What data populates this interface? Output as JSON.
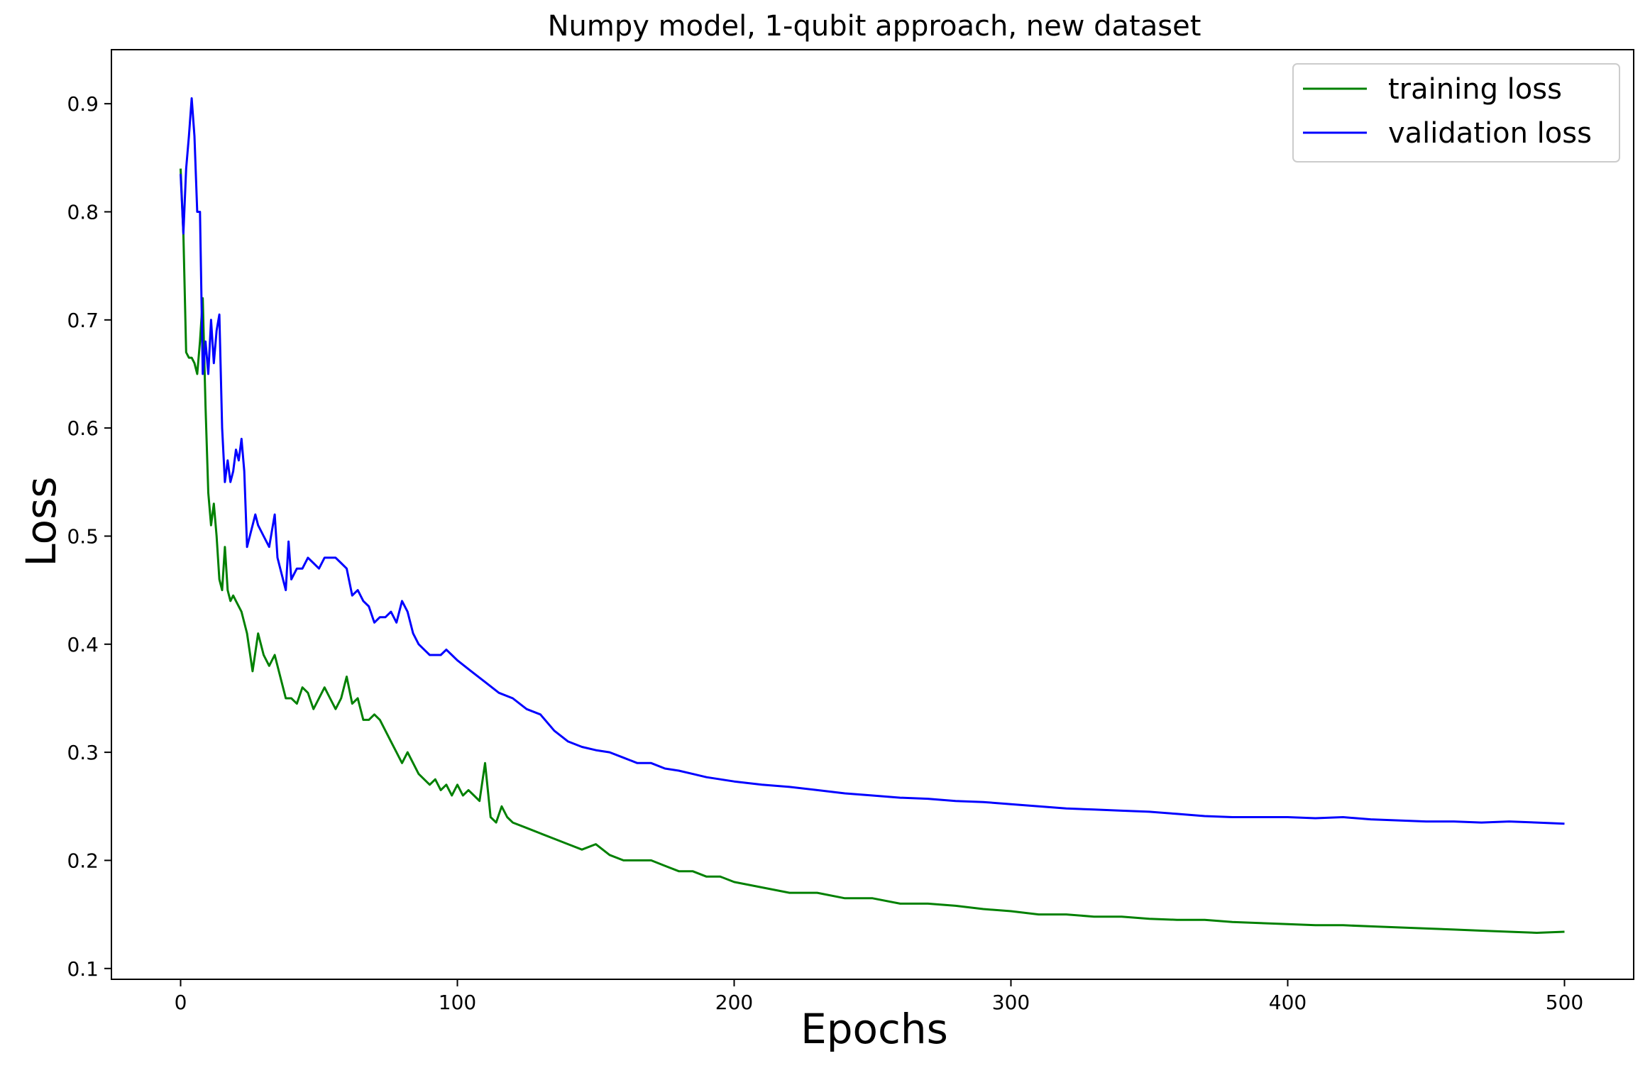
{
  "chart_data": {
    "type": "line",
    "title": "Numpy model, 1-qubit approach, new dataset",
    "xlabel": "Epochs",
    "ylabel": "Loss",
    "xlim": [
      -25,
      525
    ],
    "ylim": [
      0.09,
      0.95
    ],
    "xticks": [
      0,
      100,
      200,
      300,
      400,
      500
    ],
    "yticks": [
      0.1,
      0.2,
      0.3,
      0.4,
      0.5,
      0.6,
      0.7,
      0.8,
      0.9
    ],
    "grid": false,
    "legend_position": "top-right",
    "series": [
      {
        "name": "training loss",
        "color": "#008000",
        "x": [
          0,
          1,
          2,
          3,
          4,
          5,
          6,
          7,
          8,
          9,
          10,
          11,
          12,
          13,
          14,
          15,
          16,
          17,
          18,
          19,
          20,
          22,
          24,
          26,
          28,
          30,
          32,
          34,
          36,
          38,
          40,
          42,
          44,
          46,
          48,
          50,
          52,
          54,
          56,
          58,
          60,
          62,
          64,
          66,
          68,
          70,
          72,
          74,
          76,
          78,
          80,
          82,
          84,
          86,
          88,
          90,
          92,
          94,
          96,
          98,
          100,
          102,
          104,
          106,
          108,
          110,
          112,
          114,
          116,
          118,
          120,
          125,
          130,
          135,
          140,
          145,
          150,
          155,
          160,
          165,
          170,
          175,
          180,
          185,
          190,
          195,
          200,
          210,
          220,
          230,
          240,
          250,
          260,
          270,
          280,
          290,
          300,
          310,
          320,
          330,
          340,
          350,
          360,
          370,
          380,
          390,
          400,
          410,
          420,
          430,
          440,
          450,
          460,
          470,
          480,
          490,
          500
        ],
        "values": [
          0.84,
          0.78,
          0.67,
          0.665,
          0.665,
          0.66,
          0.65,
          0.68,
          0.72,
          0.62,
          0.54,
          0.51,
          0.53,
          0.5,
          0.46,
          0.45,
          0.49,
          0.45,
          0.44,
          0.445,
          0.44,
          0.43,
          0.41,
          0.375,
          0.41,
          0.39,
          0.38,
          0.39,
          0.37,
          0.35,
          0.35,
          0.345,
          0.36,
          0.355,
          0.34,
          0.35,
          0.36,
          0.35,
          0.34,
          0.35,
          0.37,
          0.345,
          0.35,
          0.33,
          0.33,
          0.335,
          0.33,
          0.32,
          0.31,
          0.3,
          0.29,
          0.3,
          0.29,
          0.28,
          0.275,
          0.27,
          0.275,
          0.265,
          0.27,
          0.26,
          0.27,
          0.26,
          0.265,
          0.26,
          0.255,
          0.29,
          0.24,
          0.235,
          0.25,
          0.24,
          0.235,
          0.23,
          0.225,
          0.22,
          0.215,
          0.21,
          0.215,
          0.205,
          0.2,
          0.2,
          0.2,
          0.195,
          0.19,
          0.19,
          0.185,
          0.185,
          0.18,
          0.175,
          0.17,
          0.17,
          0.165,
          0.165,
          0.16,
          0.16,
          0.158,
          0.155,
          0.153,
          0.15,
          0.15,
          0.148,
          0.148,
          0.146,
          0.145,
          0.145,
          0.143,
          0.142,
          0.141,
          0.14,
          0.14,
          0.139,
          0.138,
          0.137,
          0.136,
          0.135,
          0.134,
          0.133,
          0.134
        ]
      },
      {
        "name": "validation loss",
        "color": "#0000ff",
        "x": [
          0,
          1,
          2,
          3,
          4,
          5,
          6,
          7,
          8,
          9,
          10,
          11,
          12,
          13,
          14,
          15,
          16,
          17,
          18,
          19,
          20,
          21,
          22,
          23,
          24,
          25,
          26,
          27,
          28,
          30,
          32,
          34,
          35,
          36,
          38,
          39,
          40,
          42,
          44,
          46,
          48,
          50,
          52,
          54,
          56,
          58,
          60,
          62,
          64,
          66,
          68,
          70,
          72,
          74,
          76,
          78,
          80,
          82,
          84,
          86,
          88,
          90,
          92,
          94,
          96,
          98,
          100,
          105,
          110,
          115,
          120,
          125,
          130,
          135,
          140,
          145,
          150,
          155,
          160,
          165,
          170,
          175,
          180,
          185,
          190,
          195,
          200,
          210,
          220,
          230,
          240,
          250,
          260,
          270,
          280,
          290,
          300,
          310,
          320,
          330,
          340,
          350,
          360,
          370,
          380,
          390,
          400,
          410,
          420,
          430,
          440,
          450,
          460,
          470,
          480,
          490,
          500
        ],
        "values": [
          0.835,
          0.78,
          0.84,
          0.87,
          0.905,
          0.87,
          0.8,
          0.8,
          0.65,
          0.68,
          0.65,
          0.7,
          0.66,
          0.69,
          0.705,
          0.6,
          0.55,
          0.57,
          0.55,
          0.56,
          0.58,
          0.57,
          0.59,
          0.56,
          0.49,
          0.5,
          0.51,
          0.52,
          0.51,
          0.5,
          0.49,
          0.52,
          0.48,
          0.47,
          0.45,
          0.495,
          0.46,
          0.47,
          0.47,
          0.48,
          0.475,
          0.47,
          0.48,
          0.48,
          0.48,
          0.475,
          0.47,
          0.445,
          0.45,
          0.44,
          0.435,
          0.42,
          0.425,
          0.425,
          0.43,
          0.42,
          0.44,
          0.43,
          0.41,
          0.4,
          0.395,
          0.39,
          0.39,
          0.39,
          0.395,
          0.39,
          0.385,
          0.375,
          0.365,
          0.355,
          0.35,
          0.34,
          0.335,
          0.32,
          0.31,
          0.305,
          0.302,
          0.3,
          0.295,
          0.29,
          0.29,
          0.285,
          0.283,
          0.28,
          0.277,
          0.275,
          0.273,
          0.27,
          0.268,
          0.265,
          0.262,
          0.26,
          0.258,
          0.257,
          0.255,
          0.254,
          0.252,
          0.25,
          0.248,
          0.247,
          0.246,
          0.245,
          0.243,
          0.241,
          0.24,
          0.24,
          0.24,
          0.239,
          0.24,
          0.238,
          0.237,
          0.236,
          0.236,
          0.235,
          0.236,
          0.235,
          0.234
        ]
      }
    ]
  }
}
